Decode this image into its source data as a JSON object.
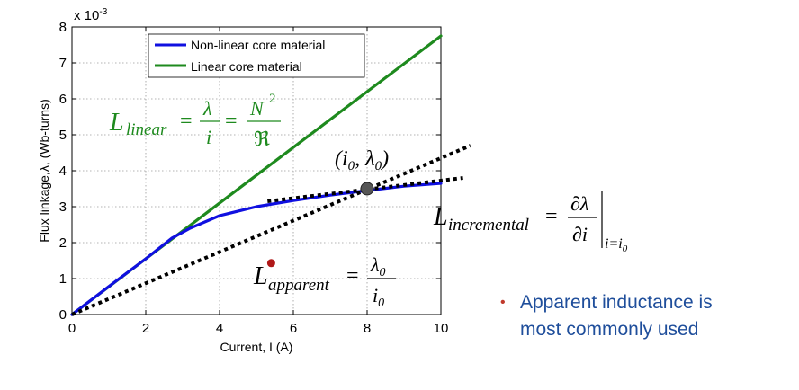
{
  "chart_data": {
    "type": "line",
    "xlabel": "Current, I (A)",
    "ylabel": "Flux linkage,λ, (Wb-turns)",
    "y_exponent_label": "x 10",
    "y_exponent": "-3",
    "xlim": [
      0,
      10
    ],
    "ylim": [
      0,
      8
    ],
    "x_ticks": [
      "0",
      "2",
      "4",
      "6",
      "8",
      "10"
    ],
    "y_ticks": [
      "0",
      "1",
      "2",
      "3",
      "4",
      "5",
      "6",
      "7",
      "8"
    ],
    "grid": true,
    "legend_position": "top-center",
    "series": [
      {
        "name": "Non-linear core material",
        "color": "#1010e0",
        "x": [
          0,
          1,
          2,
          2.7,
          3.2,
          4,
          5,
          6,
          7,
          8,
          9,
          10
        ],
        "y": [
          0,
          0.78,
          1.55,
          2.12,
          2.4,
          2.75,
          3.0,
          3.17,
          3.32,
          3.45,
          3.57,
          3.65
        ]
      },
      {
        "name": "Linear core material",
        "color": "#1e8a1e",
        "x": [
          0,
          10
        ],
        "y": [
          0,
          7.75
        ]
      }
    ],
    "dotted_lines": [
      {
        "x": [
          0,
          10.8
        ],
        "y": [
          0,
          4.7
        ]
      },
      {
        "x": [
          5.3,
          10.6
        ],
        "y": [
          3.15,
          3.8
        ]
      }
    ],
    "markers": [
      {
        "x": 8.0,
        "y": 3.5,
        "color": "#555555"
      },
      {
        "x": 5.4,
        "y": 1.43,
        "color": "#b01818"
      }
    ],
    "annotations": {
      "linear": {
        "L": "L",
        "sub": "linear",
        "eq": "=",
        "lam": "λ",
        "i": "i",
        "eq2": "=",
        "N": "N",
        "pow": "2",
        "R": "ℜ",
        "color": "#1e8a1e"
      },
      "point": {
        "text": "(i",
        "sub0": "0",
        "comma": ", λ",
        "sub1": "0",
        "close": ")"
      },
      "incremental": {
        "L": "L",
        "sub": "incremental",
        "eq": "=",
        "num": "∂λ",
        "den": "∂i",
        "eval": "i=i",
        "eval_sub": "0"
      },
      "apparent": {
        "L": "L",
        "sub": "apparent",
        "eq": "=",
        "num": "λ",
        "num_sub": "0",
        "den": "i",
        "den_sub": "0"
      }
    }
  },
  "note": {
    "bullet": "•",
    "line1": "Apparent inductance is",
    "line2": "most commonly used",
    "color": "#1f4e9b"
  }
}
